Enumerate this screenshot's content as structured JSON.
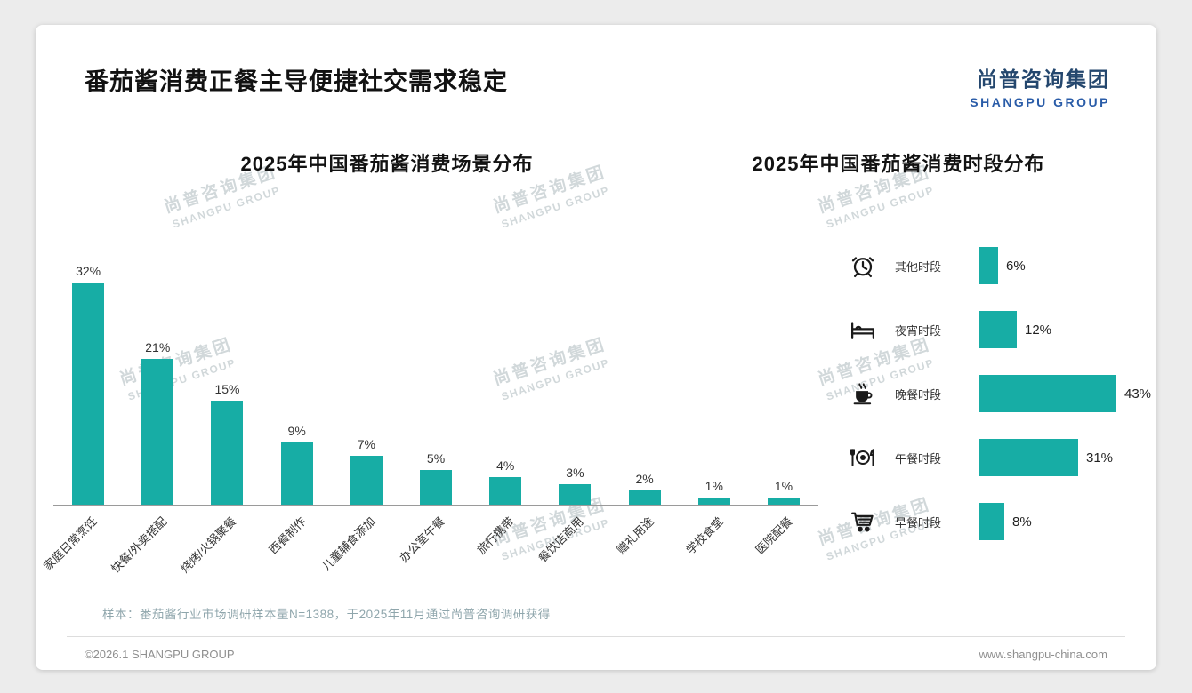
{
  "page": {
    "title": "番茄酱消费正餐主导便捷社交需求稳定",
    "logo": {
      "cn": "尚普咨询集团",
      "en": "SHANGPU GROUP"
    },
    "footnote": "样本：番茄酱行业市场调研样本量N=1388，于2025年11月通过尚普咨询调研获得",
    "copyright": "©2026.1 SHANGPU GROUP",
    "website": "www.shangpu-china.com"
  },
  "watermark": {
    "line1": "尚普咨询集团",
    "line2": "SHANGPU GROUP"
  },
  "colors": {
    "accent": "#17ADA5",
    "logo_cn": "#24476E",
    "logo_en": "#2A5CA8",
    "footnote": "#8FA6AC"
  },
  "chart_data": [
    {
      "type": "bar",
      "title": "2025年中国番茄酱消费场景分布",
      "categories": [
        "家庭日常烹饪",
        "快餐/外卖搭配",
        "烧烤/火锅聚餐",
        "西餐制作",
        "儿童辅食添加",
        "办公室午餐",
        "旅行携带",
        "餐饮店商用",
        "赠礼用途",
        "学校食堂",
        "医院配餐"
      ],
      "values": [
        32,
        21,
        15,
        9,
        7,
        5,
        4,
        3,
        2,
        1,
        1
      ],
      "unit": "%",
      "ylim": [
        0,
        32
      ],
      "bar_color": "#17ADA5",
      "grid": false,
      "value_labels": true
    },
    {
      "type": "bar",
      "orientation": "horizontal",
      "title": "2025年中国番茄酱消费时段分布",
      "categories": [
        "其他时段",
        "夜宵时段",
        "晚餐时段",
        "午餐时段",
        "早餐时段"
      ],
      "values": [
        6,
        12,
        43,
        31,
        8
      ],
      "icons": [
        "alarm-clock-icon",
        "bed-icon",
        "coffee-cup-icon",
        "plate-cutlery-icon",
        "shopping-cart-icon"
      ],
      "unit": "%",
      "xlim": [
        0,
        43
      ],
      "bar_color": "#17ADA5",
      "grid": false,
      "value_labels": true
    }
  ]
}
